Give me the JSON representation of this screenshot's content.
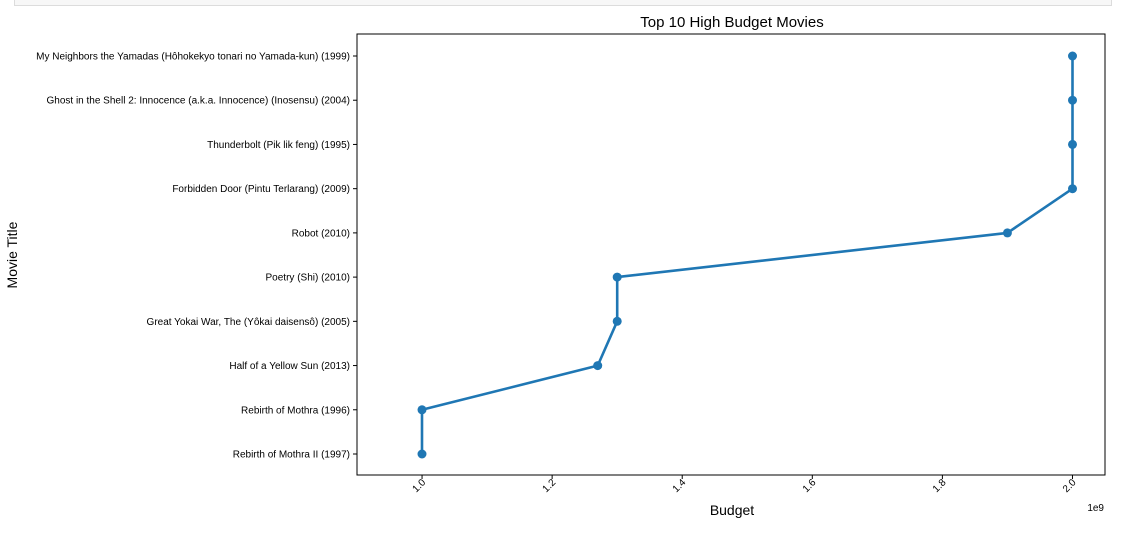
{
  "chart_data": {
    "type": "line",
    "title": "Top 10 High Budget Movies",
    "xlabel": "Budget",
    "ylabel": "Movie Title",
    "x_scale_label": "1e9",
    "x_ticks": [
      1.0,
      1.2,
      1.4,
      1.6,
      1.8,
      2.0
    ],
    "x_tick_labels": [
      "1.0",
      "1.2",
      "1.4",
      "1.6",
      "1.8",
      "2.0"
    ],
    "xlim": [
      0.9,
      2.05
    ],
    "grid": false,
    "legend": "none",
    "marker": "circle",
    "color": "#1f77b4",
    "series": [
      {
        "categories": [
          "My Neighbors the Yamadas (Hôhokekyo tonari no Yamada-kun) (1999)",
          "Ghost in the Shell 2: Innocence (a.k.a. Innocence) (Inosensu) (2004)",
          "Thunderbolt (Pik lik feng) (1995)",
          "Forbidden Door (Pintu Terlarang) (2009)",
          "Robot (2010)",
          "Poetry (Shi) (2010)",
          "Great Yokai War, The (Yôkai daisensô) (2005)",
          "Half of a Yellow Sun (2013)",
          "Rebirth of Mothra (1996)",
          "Rebirth of Mothra II (1997)"
        ],
        "values": [
          2.0,
          2.0,
          2.0,
          2.0,
          1.9,
          1.3,
          1.3,
          1.27,
          1.0,
          1.0
        ]
      }
    ]
  }
}
